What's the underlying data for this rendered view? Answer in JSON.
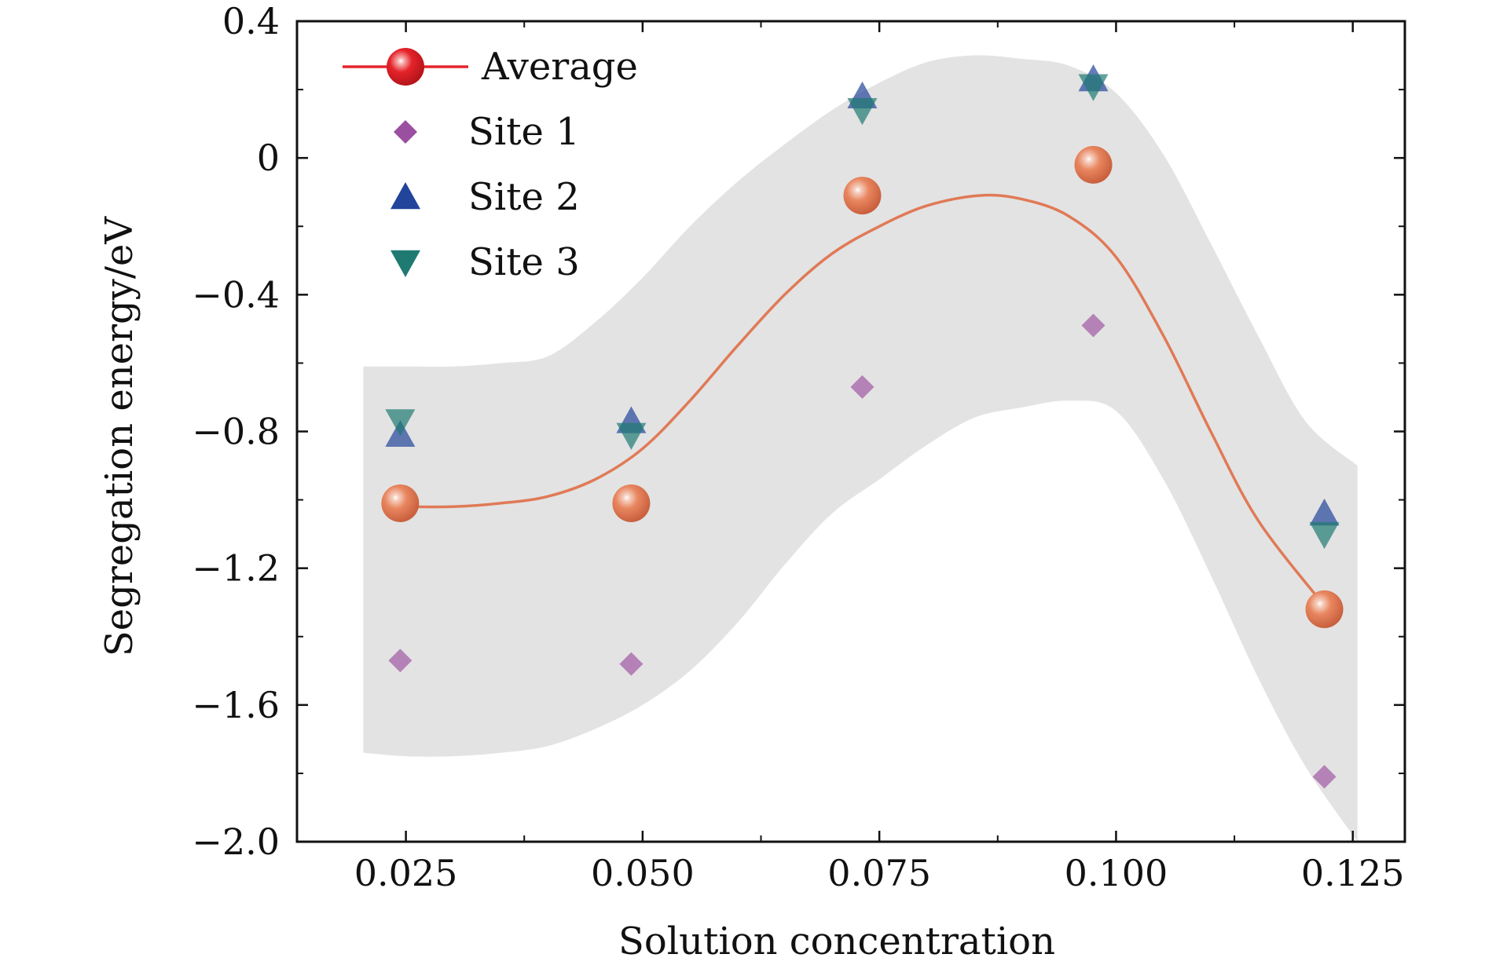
{
  "chart_data": {
    "type": "scatter",
    "title": "",
    "xlabel": "Solution concentration",
    "ylabel": "Segregation energy/eV",
    "xlim": [
      0.0135,
      0.1305
    ],
    "ylim": [
      -2.0,
      0.4
    ],
    "x_ticks": [
      0.025,
      0.05,
      0.075,
      0.1,
      0.125
    ],
    "x_tick_labels": [
      "0.025",
      "0.050",
      "0.075",
      "0.100",
      "0.125"
    ],
    "y_ticks": [
      0.4,
      0,
      -0.4,
      -0.8,
      -1.2,
      -1.6,
      -2.0
    ],
    "y_tick_labels": [
      "0.4",
      "0",
      "−0.4",
      "−0.8",
      "−1.2",
      "−1.6",
      "−2.0"
    ],
    "legend_position": "top-left",
    "x": [
      0.0244,
      0.0488,
      0.0732,
      0.0976,
      0.122
    ],
    "series": [
      {
        "name": "Average",
        "marker": "sphere",
        "color": "#e07a56",
        "line": true,
        "values": [
          -1.01,
          -1.01,
          -0.11,
          -0.02,
          -1.32
        ]
      },
      {
        "name": "Site 1",
        "marker": "diamond",
        "color": "#9b4fa0",
        "values": [
          -1.47,
          -1.48,
          -0.67,
          -0.49,
          -1.81
        ]
      },
      {
        "name": "Site 2",
        "marker": "triangle-up",
        "color": "#22449a",
        "values": [
          -0.81,
          -0.77,
          0.18,
          0.23,
          -1.04
        ]
      },
      {
        "name": "Site 3",
        "marker": "triangle-down",
        "color": "#1f7b72",
        "values": [
          -0.77,
          -0.81,
          0.14,
          0.21,
          -1.1
        ]
      }
    ],
    "fit_curve": {
      "name": "Average fit",
      "color": "#e07a56",
      "x": [
        0.0244,
        0.03,
        0.035,
        0.04,
        0.045,
        0.05,
        0.055,
        0.06,
        0.065,
        0.07,
        0.075,
        0.08,
        0.0855,
        0.09,
        0.095,
        0.1,
        0.105,
        0.11,
        0.115,
        0.122
      ],
      "y": [
        -1.02,
        -1.02,
        -1.01,
        -0.99,
        -0.94,
        -0.85,
        -0.71,
        -0.55,
        -0.4,
        -0.28,
        -0.2,
        -0.14,
        -0.11,
        -0.12,
        -0.17,
        -0.29,
        -0.52,
        -0.8,
        -1.06,
        -1.31
      ]
    },
    "confidence_band": {
      "color": "#e3e3e3",
      "x": [
        0.0205,
        0.025,
        0.03,
        0.035,
        0.04,
        0.045,
        0.05,
        0.055,
        0.06,
        0.065,
        0.07,
        0.075,
        0.08,
        0.085,
        0.09,
        0.095,
        0.1,
        0.105,
        0.11,
        0.115,
        0.12,
        0.1255
      ],
      "upper": [
        -0.61,
        -0.61,
        -0.61,
        -0.6,
        -0.58,
        -0.48,
        -0.35,
        -0.2,
        -0.07,
        0.04,
        0.14,
        0.22,
        0.28,
        0.3,
        0.29,
        0.27,
        0.19,
        0.01,
        -0.25,
        -0.52,
        -0.77,
        -0.9
      ],
      "lower": [
        -1.74,
        -1.75,
        -1.75,
        -1.74,
        -1.72,
        -1.67,
        -1.6,
        -1.5,
        -1.36,
        -1.19,
        -1.04,
        -0.94,
        -0.84,
        -0.76,
        -0.73,
        -0.71,
        -0.74,
        -0.94,
        -1.22,
        -1.52,
        -1.78,
        -2.0
      ]
    }
  }
}
